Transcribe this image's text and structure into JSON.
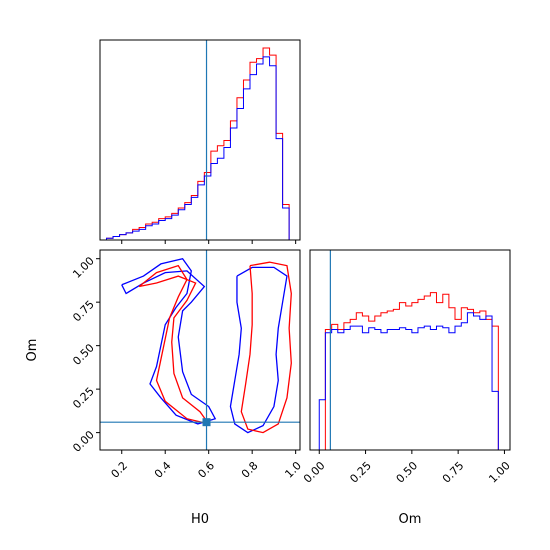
{
  "colors": {
    "series_a": "#ff0000",
    "series_b": "#0000ff",
    "truth": "#1f77b4"
  },
  "chart_data": [
    {
      "type": "histogram",
      "panel": "top-left",
      "variable": "H0",
      "xlim": [
        0.1,
        1.02
      ],
      "truth": 0.59,
      "bin_edges": [
        0.1,
        0.13,
        0.16,
        0.19,
        0.22,
        0.25,
        0.28,
        0.31,
        0.34,
        0.37,
        0.4,
        0.43,
        0.46,
        0.49,
        0.52,
        0.55,
        0.58,
        0.61,
        0.64,
        0.67,
        0.7,
        0.73,
        0.76,
        0.79,
        0.82,
        0.85,
        0.88,
        0.91,
        0.94,
        0.97,
        1.0
      ],
      "series": [
        {
          "name": "",
          "color": "#ff0000",
          "values": [
            0,
            1,
            2,
            3,
            4,
            6,
            7,
            9,
            10,
            12,
            13,
            15,
            18,
            21,
            25,
            33,
            38,
            50,
            53,
            56,
            67,
            80,
            90,
            100,
            102,
            108,
            104,
            60,
            20,
            0
          ]
        },
        {
          "name": "",
          "color": "#0000ff",
          "values": [
            0,
            1,
            2,
            3,
            4,
            5,
            6,
            8,
            9,
            11,
            12,
            14,
            17,
            20,
            24,
            31,
            36,
            43,
            46,
            52,
            63,
            74,
            85,
            93,
            99,
            103,
            98,
            57,
            18,
            0
          ]
        }
      ]
    },
    {
      "type": "contour",
      "panel": "bottom-left",
      "xvar": "H0",
      "yvar": "Om",
      "xlim": [
        0.1,
        1.02
      ],
      "ylim": [
        -0.1,
        1.05
      ],
      "xticks": [
        "0.2",
        "0.4",
        "0.6",
        "0.8",
        "1.0"
      ],
      "yticks": [
        "0.00",
        "0.25",
        "0.50",
        "0.75",
        "1.00"
      ],
      "xlabel": "H0",
      "ylabel": "Om",
      "truth": [
        0.59,
        0.06
      ],
      "contours": [
        {
          "color": "#0000ff",
          "points": [
            [
              0.2,
              0.85
            ],
            [
              0.3,
              0.9
            ],
            [
              0.38,
              0.97
            ],
            [
              0.48,
              1.0
            ],
            [
              0.52,
              0.93
            ],
            [
              0.5,
              0.8
            ],
            [
              0.45,
              0.72
            ],
            [
              0.4,
              0.62
            ],
            [
              0.38,
              0.5
            ],
            [
              0.36,
              0.38
            ],
            [
              0.33,
              0.28
            ],
            [
              0.38,
              0.2
            ],
            [
              0.45,
              0.1
            ],
            [
              0.55,
              0.05
            ],
            [
              0.63,
              0.08
            ],
            [
              0.6,
              0.15
            ],
            [
              0.52,
              0.22
            ],
            [
              0.48,
              0.35
            ],
            [
              0.46,
              0.55
            ],
            [
              0.48,
              0.7
            ],
            [
              0.52,
              0.75
            ],
            [
              0.58,
              0.84
            ],
            [
              0.5,
              0.93
            ],
            [
              0.4,
              0.92
            ],
            [
              0.3,
              0.86
            ],
            [
              0.22,
              0.8
            ],
            [
              0.2,
              0.85
            ]
          ]
        },
        {
          "color": "#0000ff",
          "points": [
            [
              0.73,
              0.9
            ],
            [
              0.8,
              0.95
            ],
            [
              0.9,
              0.95
            ],
            [
              0.96,
              0.9
            ],
            [
              0.94,
              0.75
            ],
            [
              0.92,
              0.6
            ],
            [
              0.91,
              0.45
            ],
            [
              0.92,
              0.3
            ],
            [
              0.9,
              0.15
            ],
            [
              0.85,
              0.04
            ],
            [
              0.78,
              0.0
            ],
            [
              0.72,
              0.05
            ],
            [
              0.7,
              0.15
            ],
            [
              0.72,
              0.3
            ],
            [
              0.74,
              0.45
            ],
            [
              0.75,
              0.6
            ],
            [
              0.73,
              0.75
            ],
            [
              0.73,
              0.9
            ]
          ]
        },
        {
          "color": "#ff0000",
          "points": [
            [
              0.28,
              0.84
            ],
            [
              0.36,
              0.92
            ],
            [
              0.46,
              0.96
            ],
            [
              0.5,
              0.88
            ],
            [
              0.46,
              0.78
            ],
            [
              0.42,
              0.66
            ],
            [
              0.4,
              0.54
            ],
            [
              0.38,
              0.42
            ],
            [
              0.36,
              0.3
            ],
            [
              0.4,
              0.18
            ],
            [
              0.5,
              0.08
            ],
            [
              0.6,
              0.05
            ],
            [
              0.56,
              0.12
            ],
            [
              0.48,
              0.2
            ],
            [
              0.44,
              0.34
            ],
            [
              0.43,
              0.52
            ],
            [
              0.44,
              0.66
            ],
            [
              0.5,
              0.76
            ],
            [
              0.54,
              0.86
            ],
            [
              0.46,
              0.9
            ],
            [
              0.36,
              0.86
            ],
            [
              0.28,
              0.84
            ]
          ]
        },
        {
          "color": "#ff0000",
          "points": [
            [
              0.79,
              0.96
            ],
            [
              0.88,
              0.98
            ],
            [
              0.96,
              0.96
            ],
            [
              0.98,
              0.8
            ],
            [
              0.97,
              0.6
            ],
            [
              0.98,
              0.4
            ],
            [
              0.96,
              0.2
            ],
            [
              0.92,
              0.05
            ],
            [
              0.85,
              0.0
            ],
            [
              0.78,
              0.02
            ],
            [
              0.75,
              0.12
            ],
            [
              0.77,
              0.28
            ],
            [
              0.79,
              0.45
            ],
            [
              0.8,
              0.62
            ],
            [
              0.8,
              0.8
            ],
            [
              0.79,
              0.96
            ]
          ]
        }
      ]
    },
    {
      "type": "histogram",
      "panel": "bottom-right",
      "variable": "Om",
      "xlim": [
        -0.05,
        1.03
      ],
      "xticks": [
        "0.00",
        "0.25",
        "0.50",
        "0.75",
        "1.00"
      ],
      "xlabel": "Om",
      "truth": 0.06,
      "bin_edges": [
        0.0,
        0.033,
        0.067,
        0.1,
        0.133,
        0.167,
        0.2,
        0.233,
        0.267,
        0.3,
        0.333,
        0.367,
        0.4,
        0.433,
        0.467,
        0.5,
        0.533,
        0.567,
        0.6,
        0.633,
        0.667,
        0.7,
        0.733,
        0.767,
        0.8,
        0.833,
        0.867,
        0.9,
        0.933,
        0.967,
        1.0
      ],
      "series": [
        {
          "name": "",
          "color": "#ff0000",
          "values": [
            0,
            72,
            75,
            72,
            76,
            78,
            82,
            80,
            77,
            80,
            82,
            83,
            84,
            88,
            86,
            88,
            90,
            92,
            94,
            88,
            93,
            85,
            78,
            85,
            84,
            82,
            83,
            78,
            74,
            0
          ]
        },
        {
          "name": "",
          "color": "#0000ff",
          "values": [
            30,
            70,
            72,
            70,
            72,
            74,
            74,
            70,
            73,
            72,
            70,
            72,
            72,
            73,
            72,
            70,
            73,
            74,
            72,
            74,
            73,
            70,
            74,
            76,
            82,
            80,
            78,
            80,
            35,
            0
          ]
        }
      ]
    }
  ]
}
